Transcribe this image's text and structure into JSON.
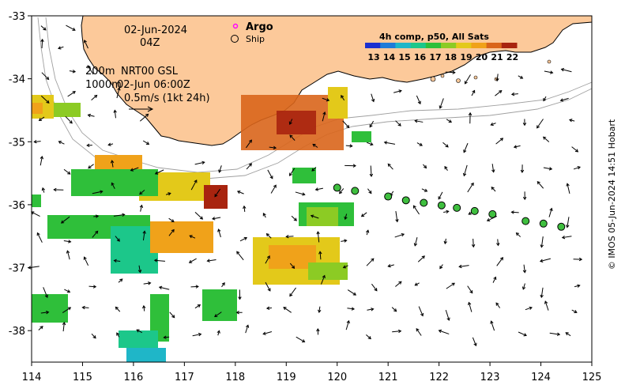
{
  "map": {
    "x_ticks": [
      "114",
      "115",
      "116",
      "117",
      "118",
      "119",
      "120",
      "121",
      "122",
      "123",
      "124",
      "125"
    ],
    "y_ticks": [
      "-33",
      "-34",
      "-35",
      "-36",
      "-37",
      "-38"
    ],
    "extent": {
      "lon": [
        114,
        125
      ],
      "lat": [
        -38.5,
        -33
      ]
    }
  },
  "annotations": {
    "date": "02-Jun-2024",
    "hour": "04Z",
    "depth_200": "200m",
    "depth_1000": "1000m",
    "product": "NRT00 GSL",
    "product_time": "02-Jun 06:00Z",
    "scale_label": "0.5m/s (1kt 24h)"
  },
  "legend": {
    "argo_label": "Argo",
    "ship_label": "Ship",
    "colorbar_title": "4h comp, p50, All Sats",
    "colorbar_ticks": [
      "13",
      "14",
      "15",
      "16",
      "17",
      "18",
      "19",
      "20",
      "21",
      "22"
    ],
    "colors": [
      "#1a2fd0",
      "#1f7bd8",
      "#1fb6c8",
      "#1cc78a",
      "#2fbf3a",
      "#8ccb24",
      "#e3c91a",
      "#f0a21a",
      "#d9651b",
      "#a8240f"
    ]
  },
  "ship_track": [
    {
      "lon": 120.0,
      "lat": -35.73
    },
    {
      "lon": 120.35,
      "lat": -35.78
    },
    {
      "lon": 121.0,
      "lat": -35.87
    },
    {
      "lon": 121.35,
      "lat": -35.93
    },
    {
      "lon": 121.7,
      "lat": -35.97
    },
    {
      "lon": 122.05,
      "lat": -36.01
    },
    {
      "lon": 122.35,
      "lat": -36.05
    },
    {
      "lon": 122.7,
      "lat": -36.1
    },
    {
      "lon": 123.05,
      "lat": -36.15
    },
    {
      "lon": 123.7,
      "lat": -36.26
    },
    {
      "lon": 124.05,
      "lat": -36.3
    },
    {
      "lon": 124.4,
      "lat": -36.35
    }
  ],
  "credit": "© IMOS 05-Jun-2024 14:51 Hobart",
  "colors": {
    "land": "#fcc99a",
    "coast": "#000000",
    "isobath": "#a0a0a0",
    "ship_fill": "#3fbf3f",
    "argo": "#ff00ff"
  }
}
